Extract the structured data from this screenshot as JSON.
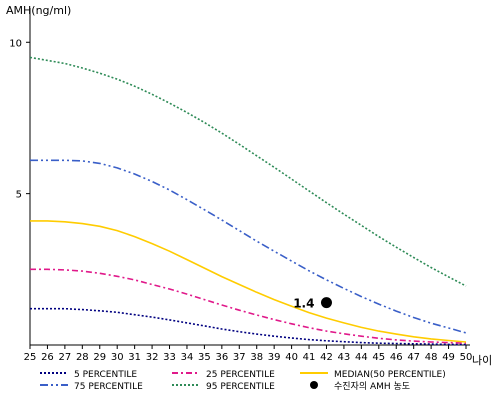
{
  "chart_data": {
    "type": "line",
    "ylabel": "AMH(ng/ml)",
    "xlabel": "나이",
    "ylim": [
      0,
      11
    ],
    "yticks": [
      5,
      10
    ],
    "x": [
      25,
      26,
      27,
      28,
      29,
      30,
      31,
      32,
      33,
      34,
      35,
      36,
      37,
      38,
      39,
      40,
      41,
      42,
      43,
      44,
      45,
      46,
      47,
      48,
      49,
      50
    ],
    "grid": false,
    "legend_position": "bottom",
    "series": [
      {
        "name": "5 PERCENTILE",
        "color": "#000080",
        "dash": "2,2",
        "values": [
          1.2,
          1.2,
          1.2,
          1.17,
          1.13,
          1.08,
          1.0,
          0.92,
          0.83,
          0.73,
          0.63,
          0.53,
          0.44,
          0.36,
          0.29,
          0.23,
          0.18,
          0.14,
          0.11,
          0.08,
          0.06,
          0.05,
          0.04,
          0.03,
          0.02,
          0.02
        ]
      },
      {
        "name": "25 PERCENTILE",
        "color": "#e0198a",
        "dash": "6,3,2,3",
        "values": [
          2.5,
          2.5,
          2.48,
          2.44,
          2.37,
          2.27,
          2.15,
          2.0,
          1.85,
          1.68,
          1.5,
          1.32,
          1.15,
          0.99,
          0.84,
          0.7,
          0.57,
          0.46,
          0.37,
          0.29,
          0.22,
          0.17,
          0.13,
          0.1,
          0.08,
          0.06
        ]
      },
      {
        "name": "MEDIAN(50 PERCENTILE)",
        "color": "#ffcc00",
        "dash": "",
        "values": [
          4.1,
          4.1,
          4.07,
          4.01,
          3.92,
          3.78,
          3.58,
          3.35,
          3.1,
          2.82,
          2.54,
          2.26,
          2.0,
          1.74,
          1.5,
          1.28,
          1.07,
          0.89,
          0.73,
          0.58,
          0.46,
          0.36,
          0.27,
          0.2,
          0.15,
          0.1
        ]
      },
      {
        "name": "75 PERCENTILE",
        "color": "#3a5fc8",
        "dash": "8,3,2,3,2,3",
        "values": [
          6.1,
          6.1,
          6.1,
          6.08,
          6.0,
          5.85,
          5.65,
          5.4,
          5.12,
          4.8,
          4.47,
          4.13,
          3.78,
          3.43,
          3.1,
          2.77,
          2.45,
          2.15,
          1.87,
          1.6,
          1.35,
          1.12,
          0.91,
          0.72,
          0.56,
          0.4
        ]
      },
      {
        "name": "95 PERCENTILE",
        "color": "#2e8b57",
        "dash": "2,2",
        "values": [
          9.5,
          9.4,
          9.3,
          9.15,
          8.98,
          8.78,
          8.55,
          8.28,
          7.99,
          7.68,
          7.35,
          7.0,
          6.63,
          6.25,
          5.87,
          5.48,
          5.09,
          4.7,
          4.32,
          3.95,
          3.58,
          3.23,
          2.89,
          2.56,
          2.25,
          1.95
        ]
      }
    ],
    "patient_point": {
      "name": "수진자의 AMH 농도",
      "x": 42,
      "y": 1.4,
      "label": "1.4",
      "color": "#000000"
    },
    "legend_order": [
      "5 PERCENTILE",
      "25 PERCENTILE",
      "MEDIAN(50 PERCENTILE)",
      "75 PERCENTILE",
      "95 PERCENTILE",
      "수진자의 AMH 농도"
    ]
  }
}
